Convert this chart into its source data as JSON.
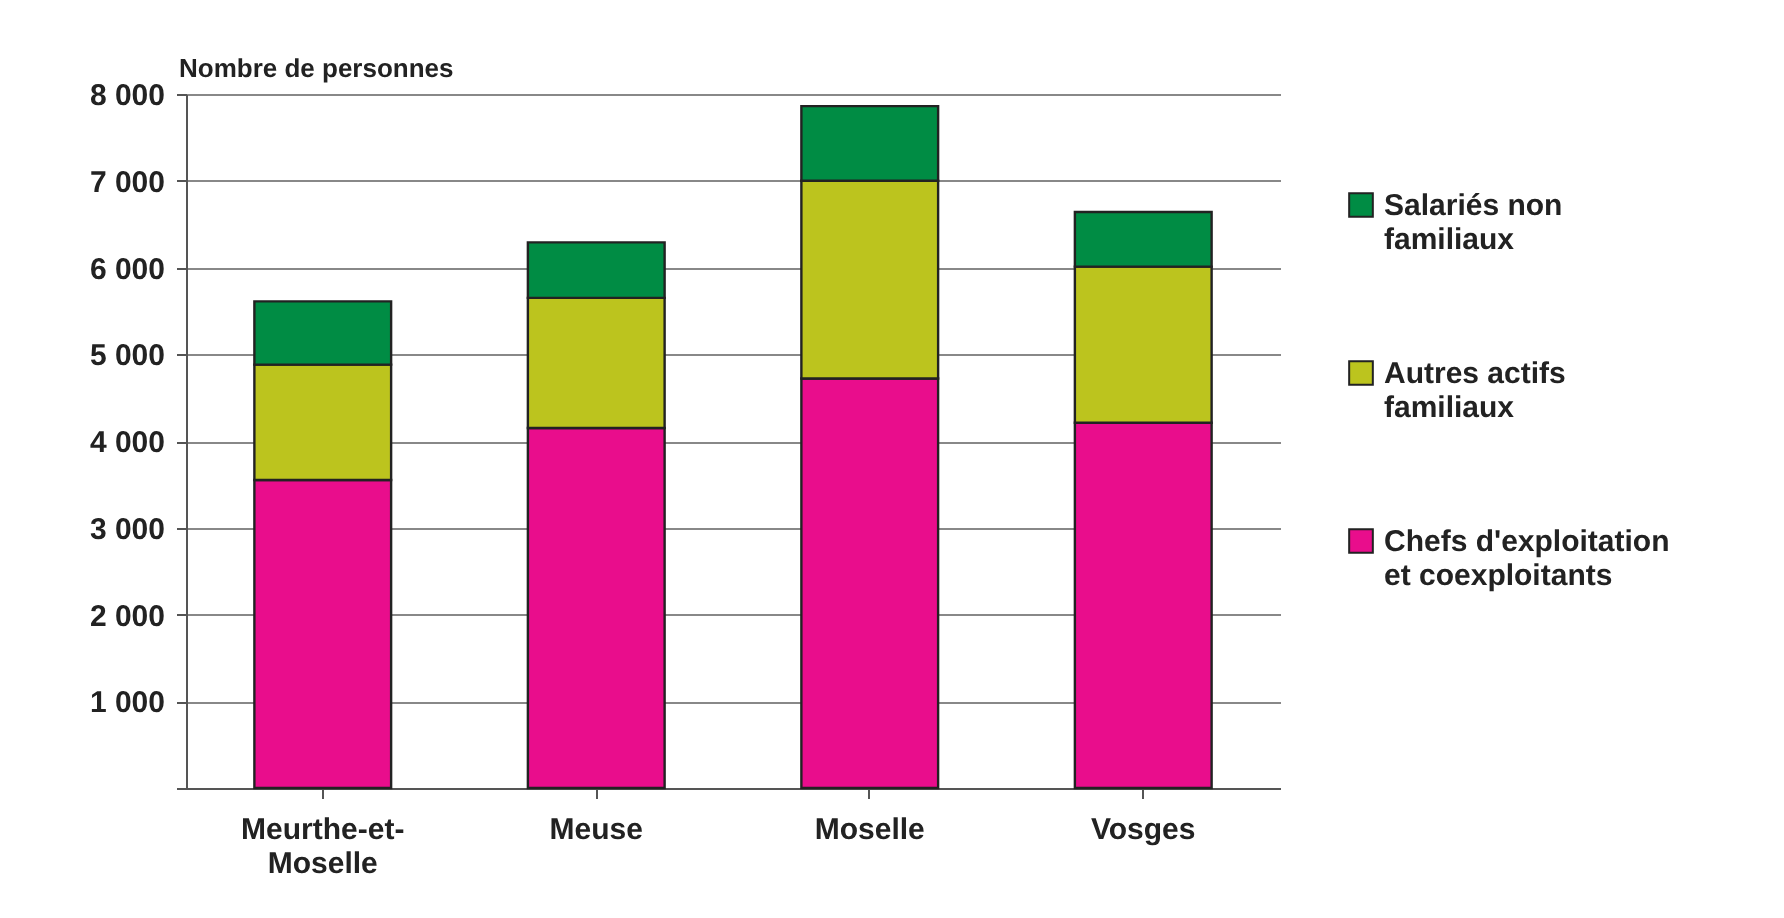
{
  "chart_data": {
    "type": "bar",
    "stacked": true,
    "ylabel": "Nombre de personnes",
    "categories": [
      "Meurthe-et-Moselle",
      "Meuse",
      "Moselle",
      "Vosges"
    ],
    "series": [
      {
        "name": "Chefs d'exploitation et coexploitants",
        "color": "#e90d8c",
        "values": [
          3550,
          4150,
          4720,
          4210
        ]
      },
      {
        "name": "Autres actifs familiaux",
        "color": "#bcc41e",
        "values": [
          1330,
          1500,
          2280,
          1800
        ]
      },
      {
        "name": "Salariés non familiaux",
        "color": "#008c44",
        "values": [
          730,
          640,
          860,
          630
        ]
      }
    ],
    "ylim": [
      0,
      8000
    ],
    "yticks": [
      {
        "value": 0,
        "label": null
      },
      1000,
      2000,
      3000,
      4000,
      5000,
      6000,
      7000,
      8000
    ],
    "grid": "y",
    "legend": "right"
  }
}
